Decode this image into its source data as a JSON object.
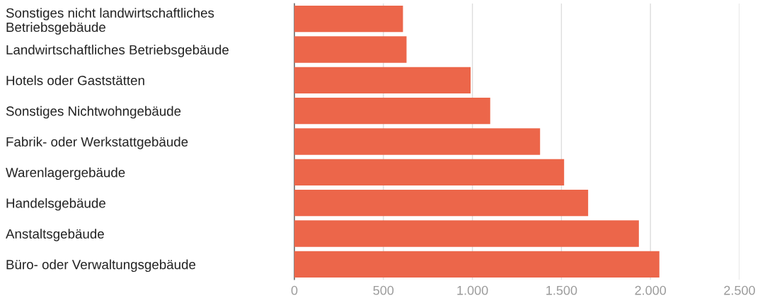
{
  "chart_data": {
    "type": "bar",
    "orientation": "horizontal",
    "categories": [
      "Sonstiges nicht landwirtschaftliches\nBetriebsgebäude",
      "Landwirtschaftliches Betriebsgebäude",
      "Hotels oder Gaststätten",
      "Sonstiges Nichtwohngebäude",
      "Fabrik- oder Werkstattgebäude",
      "Warenlagergebäude",
      "Handelsgebäude",
      "Anstaltsgebäude",
      "Büro- oder Verwaltungsgebäude"
    ],
    "values": [
      610,
      630,
      990,
      1100,
      1380,
      1515,
      1650,
      1935,
      2050
    ],
    "color": "#ec664a",
    "xlim": [
      0,
      2500
    ],
    "xticks": [
      0,
      500,
      {
        "value": 1000,
        "label": "1.000"
      },
      {
        "value": 1500,
        "label": "1.500"
      },
      {
        "value": 2000,
        "label": "2.000"
      },
      {
        "value": 2500,
        "label": "2.500"
      }
    ],
    "grid": "x",
    "legend": false
  }
}
